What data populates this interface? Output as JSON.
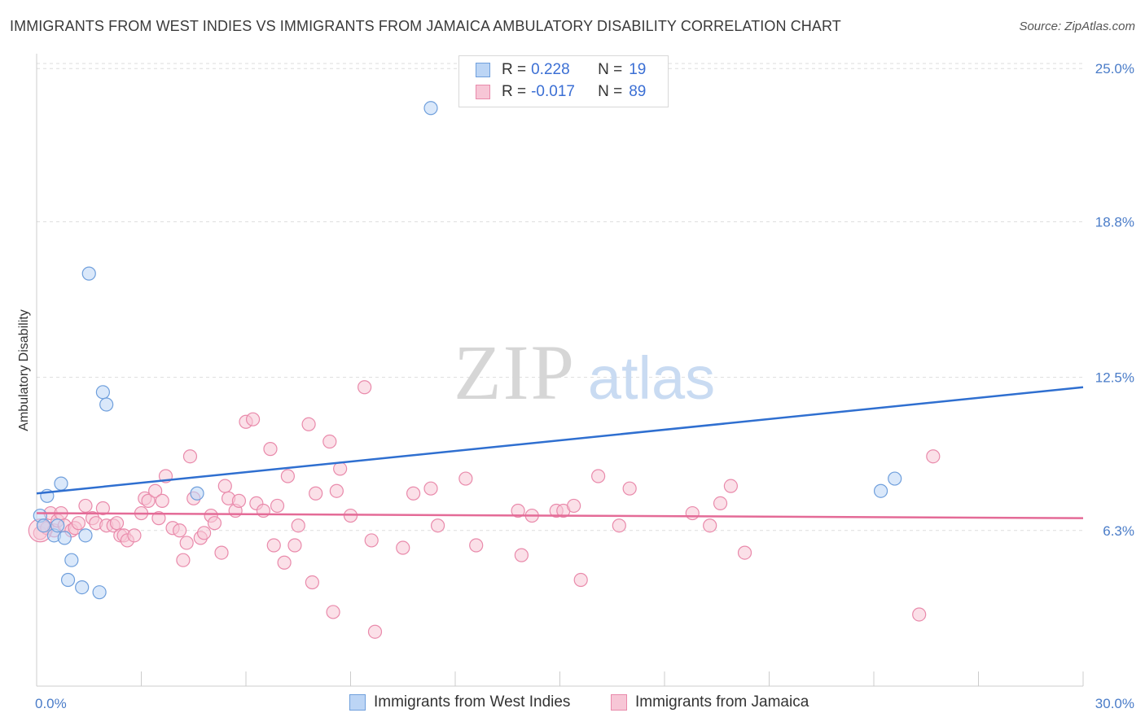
{
  "header": {
    "title": "IMMIGRANTS FROM WEST INDIES VS IMMIGRANTS FROM JAMAICA AMBULATORY DISABILITY CORRELATION CHART",
    "source": "Source: ZipAtlas.com"
  },
  "watermark": {
    "zip": "ZIP",
    "atlas": "atlas"
  },
  "legend": {
    "series1": {
      "r_label": "R =",
      "r_value": "0.228",
      "n_label": "N =",
      "n_value": "19"
    },
    "series2": {
      "r_label": "R =",
      "r_value": "-0.017",
      "n_label": "N =",
      "n_value": "89"
    }
  },
  "colors": {
    "blue_fill": "#bcd5f5",
    "blue_stroke": "#6f9fdc",
    "blue_line": "#2f6fd0",
    "pink_fill": "#f7c6d6",
    "pink_stroke": "#e98aab",
    "pink_line": "#e46b97",
    "grid": "#dddddd",
    "tick_text": "#4a7cc8"
  },
  "chart_data": {
    "type": "scatter",
    "xlabel": "",
    "ylabel": "Ambulatory Disability",
    "xlim": [
      0,
      30
    ],
    "ylim": [
      0,
      25.6
    ],
    "x_tick_labels": [
      {
        "value": 0,
        "label": "0.0%"
      },
      {
        "value": 30,
        "label": "30.0%"
      }
    ],
    "y_tick_labels": [
      {
        "value": 6.3,
        "label": "6.3%"
      },
      {
        "value": 12.5,
        "label": "12.5%"
      },
      {
        "value": 18.8,
        "label": "18.8%"
      },
      {
        "value": 25.0,
        "label": "25.0%"
      }
    ],
    "series": [
      {
        "name": "Immigrants from West Indies",
        "color": "blue",
        "trend": [
          [
            0,
            7.8
          ],
          [
            30,
            12.1
          ]
        ],
        "points": [
          [
            0.1,
            6.9
          ],
          [
            0.2,
            6.5
          ],
          [
            0.3,
            7.7
          ],
          [
            0.5,
            6.1
          ],
          [
            0.6,
            6.5
          ],
          [
            0.7,
            8.2
          ],
          [
            0.8,
            6.0
          ],
          [
            0.9,
            4.3
          ],
          [
            1.0,
            5.1
          ],
          [
            1.3,
            4.0
          ],
          [
            1.4,
            6.1
          ],
          [
            1.5,
            16.7
          ],
          [
            1.8,
            3.8
          ],
          [
            1.9,
            11.9
          ],
          [
            2.0,
            11.4
          ],
          [
            4.6,
            7.8
          ],
          [
            11.3,
            23.4
          ],
          [
            24.2,
            7.9
          ],
          [
            24.6,
            8.4
          ]
        ]
      },
      {
        "name": "Immigrants from Jamaica",
        "color": "pink",
        "trend": [
          [
            0,
            7.0
          ],
          [
            30,
            6.8
          ]
        ],
        "points": [
          [
            0.1,
            6.2
          ],
          [
            0.2,
            6.5
          ],
          [
            0.3,
            6.4
          ],
          [
            0.4,
            7.0
          ],
          [
            0.5,
            6.3
          ],
          [
            0.6,
            6.7
          ],
          [
            0.7,
            7.0
          ],
          [
            0.8,
            6.5
          ],
          [
            1.0,
            6.3
          ],
          [
            1.1,
            6.4
          ],
          [
            1.2,
            6.6
          ],
          [
            1.4,
            7.3
          ],
          [
            1.6,
            6.8
          ],
          [
            1.7,
            6.6
          ],
          [
            1.9,
            7.2
          ],
          [
            2.0,
            6.5
          ],
          [
            2.2,
            6.5
          ],
          [
            2.3,
            6.6
          ],
          [
            2.4,
            6.1
          ],
          [
            2.5,
            6.1
          ],
          [
            2.6,
            5.9
          ],
          [
            2.8,
            6.1
          ],
          [
            3.0,
            7.0
          ],
          [
            3.1,
            7.6
          ],
          [
            3.2,
            7.5
          ],
          [
            3.4,
            7.9
          ],
          [
            3.5,
            6.8
          ],
          [
            3.6,
            7.5
          ],
          [
            3.7,
            8.5
          ],
          [
            3.9,
            6.4
          ],
          [
            4.1,
            6.3
          ],
          [
            4.2,
            5.1
          ],
          [
            4.3,
            5.8
          ],
          [
            4.4,
            9.3
          ],
          [
            4.5,
            7.6
          ],
          [
            4.7,
            6.0
          ],
          [
            4.8,
            6.2
          ],
          [
            5.0,
            6.9
          ],
          [
            5.1,
            6.6
          ],
          [
            5.3,
            5.4
          ],
          [
            5.4,
            8.1
          ],
          [
            5.5,
            7.6
          ],
          [
            5.7,
            7.1
          ],
          [
            5.8,
            7.5
          ],
          [
            6.0,
            10.7
          ],
          [
            6.2,
            10.8
          ],
          [
            6.3,
            7.4
          ],
          [
            6.5,
            7.1
          ],
          [
            6.7,
            9.6
          ],
          [
            6.8,
            5.7
          ],
          [
            6.9,
            7.3
          ],
          [
            7.1,
            5.0
          ],
          [
            7.2,
            8.5
          ],
          [
            7.4,
            5.7
          ],
          [
            7.5,
            6.5
          ],
          [
            7.8,
            10.6
          ],
          [
            7.9,
            4.2
          ],
          [
            8.0,
            7.8
          ],
          [
            8.4,
            9.9
          ],
          [
            8.5,
            3.0
          ],
          [
            8.6,
            7.9
          ],
          [
            8.7,
            8.8
          ],
          [
            9.0,
            6.9
          ],
          [
            9.4,
            12.1
          ],
          [
            9.6,
            5.9
          ],
          [
            9.7,
            2.2
          ],
          [
            10.5,
            5.6
          ],
          [
            10.8,
            7.8
          ],
          [
            11.3,
            8.0
          ],
          [
            11.5,
            6.5
          ],
          [
            12.3,
            8.4
          ],
          [
            12.6,
            5.7
          ],
          [
            13.8,
            7.1
          ],
          [
            13.9,
            5.3
          ],
          [
            14.2,
            6.9
          ],
          [
            14.9,
            7.1
          ],
          [
            15.1,
            7.1
          ],
          [
            15.4,
            7.3
          ],
          [
            15.6,
            4.3
          ],
          [
            16.1,
            8.5
          ],
          [
            16.7,
            6.5
          ],
          [
            17.0,
            8.0
          ],
          [
            18.8,
            7.0
          ],
          [
            19.3,
            6.5
          ],
          [
            19.6,
            7.4
          ],
          [
            19.9,
            8.1
          ],
          [
            20.3,
            5.4
          ],
          [
            25.3,
            2.9
          ],
          [
            25.7,
            9.3
          ]
        ]
      }
    ],
    "grid": true,
    "legend_placement": "bottom-center"
  },
  "bottom_legend": {
    "item1": "Immigrants from West Indies",
    "item2": "Immigrants from Jamaica"
  }
}
